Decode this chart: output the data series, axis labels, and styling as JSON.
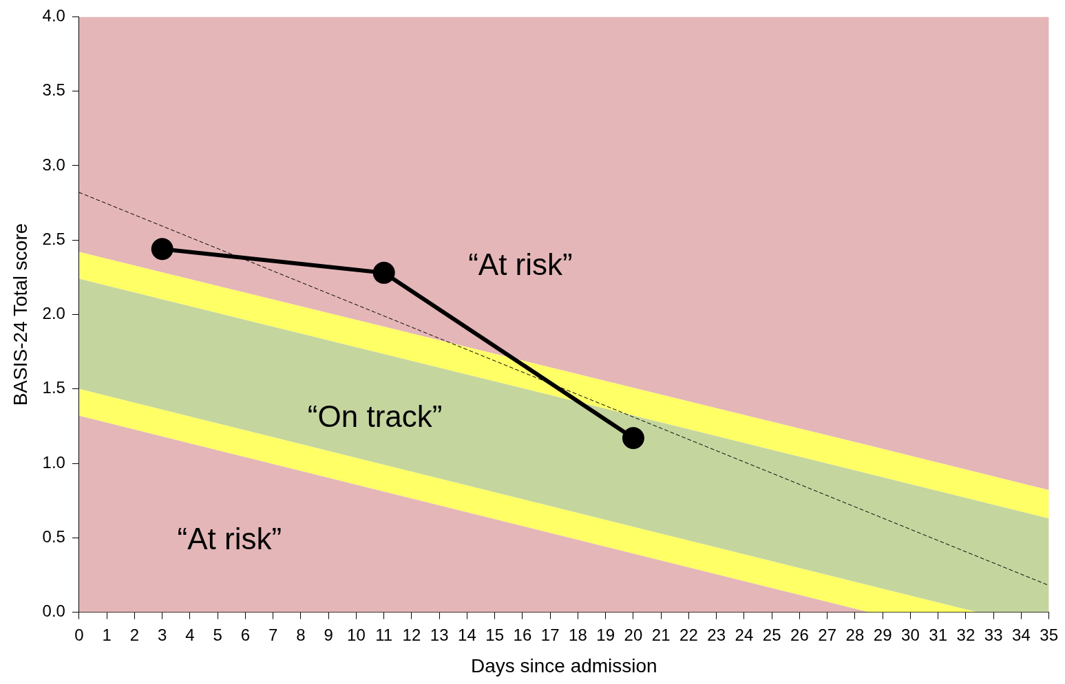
{
  "chart_data": {
    "type": "line",
    "xlabel": "Days since admission",
    "ylabel": "BASIS-24 Total score",
    "xlim": [
      0,
      35
    ],
    "xticks": [
      0,
      1,
      2,
      3,
      4,
      5,
      6,
      7,
      8,
      9,
      10,
      11,
      12,
      13,
      14,
      15,
      16,
      17,
      18,
      19,
      20,
      21,
      22,
      23,
      24,
      25,
      26,
      27,
      28,
      29,
      30,
      31,
      32,
      33,
      34,
      35
    ],
    "ylim": [
      0,
      4
    ],
    "yticks": [
      {
        "value": 0,
        "label": "0.0"
      },
      0.5,
      {
        "value": 1,
        "label": "1.0"
      },
      1.5,
      {
        "value": 2,
        "label": "2.0"
      },
      2.5,
      {
        "value": 3,
        "label": "3.0"
      },
      3.5,
      {
        "value": 4,
        "label": "4.0"
      }
    ],
    "grid": false,
    "legend": false,
    "stacked": true,
    "series": [
      {
        "type": "area",
        "color": "#e5b6b7",
        "x": [
          0,
          28.5,
          32.4,
          35
        ],
        "values": [
          1.32,
          0,
          0,
          0
        ]
      },
      {
        "type": "area",
        "color": "#ffff66",
        "x": [
          0,
          28.5,
          32.4,
          35
        ],
        "values": [
          0.18,
          0.18,
          0,
          0
        ]
      },
      {
        "type": "area",
        "color": "#c4d69e",
        "x": [
          0,
          28.5,
          32.4,
          35
        ],
        "values": [
          0.74,
          0.75,
          0.75,
          0.63
        ]
      },
      {
        "type": "area",
        "color": "#ffff66",
        "x": [
          0,
          28.5,
          32.4,
          35
        ],
        "values": [
          0.18,
          0.19,
          0.19,
          0.19
        ]
      },
      {
        "type": "area",
        "color": "#e5b6b7",
        "x": [
          0,
          28.5,
          32.4,
          35
        ],
        "values": [
          1.58,
          2.88,
          3.06,
          3.18
        ]
      },
      {
        "type": "line",
        "color": "#000000",
        "line_style": "dashed",
        "marker": "none",
        "x": [
          0,
          35
        ],
        "values": [
          2.82,
          0.18
        ]
      },
      {
        "type": "line",
        "color": "#000000",
        "line_style": "solid",
        "marker": "circle",
        "x": [
          3,
          11,
          20
        ],
        "values": [
          2.44,
          2.28,
          1.17
        ]
      }
    ],
    "annotations": [
      "“At risk”",
      "“On track”",
      "“At risk”"
    ]
  }
}
